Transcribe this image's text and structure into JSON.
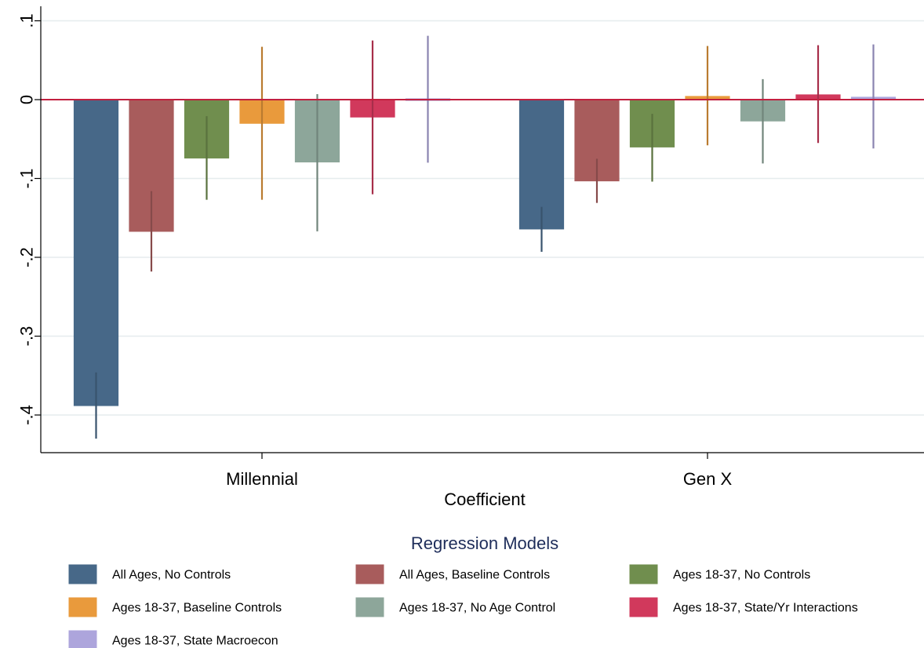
{
  "chart_data": {
    "type": "bar",
    "categories": [
      "Millennial",
      "Gen X"
    ],
    "xlabel": "Coefficient",
    "ylabel": "",
    "ylim": [
      -0.445,
      0.12
    ],
    "yticks": [
      0.1,
      0,
      -0.1,
      -0.2,
      -0.3,
      -0.4
    ],
    "ytick_labels": [
      ".1",
      "0",
      "-.1",
      "-.2",
      "-.3",
      "-.4"
    ],
    "grid": true,
    "legend": {
      "title": "Regression Models",
      "placement": "bottom",
      "columns": 3
    },
    "series": [
      {
        "name": "All Ages, No Controls",
        "color": "#476888",
        "values": [
          -0.388,
          -0.164
        ],
        "ci_low": [
          -0.43,
          -0.193
        ],
        "ci_high": [
          -0.346,
          -0.136
        ]
      },
      {
        "name": "All Ages, Baseline Controls",
        "color": "#a85c5c",
        "values": [
          -0.167,
          -0.103
        ],
        "ci_low": [
          -0.218,
          -0.131
        ],
        "ci_high": [
          -0.116,
          -0.075
        ]
      },
      {
        "name": "Ages 18-37, No Controls",
        "color": "#708e4e",
        "values": [
          -0.074,
          -0.06
        ],
        "ci_low": [
          -0.127,
          -0.104
        ],
        "ci_high": [
          -0.021,
          -0.018
        ]
      },
      {
        "name": "Ages 18-37, Baseline Controls",
        "color": "#e99a3c",
        "values": [
          -0.03,
          0.004
        ],
        "ci_low": [
          -0.127,
          -0.058
        ],
        "ci_high": [
          0.067,
          0.068
        ]
      },
      {
        "name": "Ages 18-37, No Age Control",
        "color": "#8da69a",
        "values": [
          -0.079,
          -0.027
        ],
        "ci_low": [
          -0.167,
          -0.081
        ],
        "ci_high": [
          0.007,
          0.026
        ]
      },
      {
        "name": "Ages 18-37, State/Yr Interactions",
        "color": "#d1395c",
        "values": [
          -0.022,
          0.006
        ],
        "ci_low": [
          -0.12,
          -0.055
        ],
        "ci_high": [
          0.075,
          0.069
        ]
      },
      {
        "name": "Ages 18-37, State Macroecon",
        "color": "#ada5dc",
        "values": [
          0.001,
          0.003
        ],
        "ci_low": [
          -0.08,
          -0.062
        ],
        "ci_high": [
          0.081,
          0.07
        ]
      }
    ],
    "reference_line": {
      "y": 0,
      "color": "#c2203f"
    }
  }
}
